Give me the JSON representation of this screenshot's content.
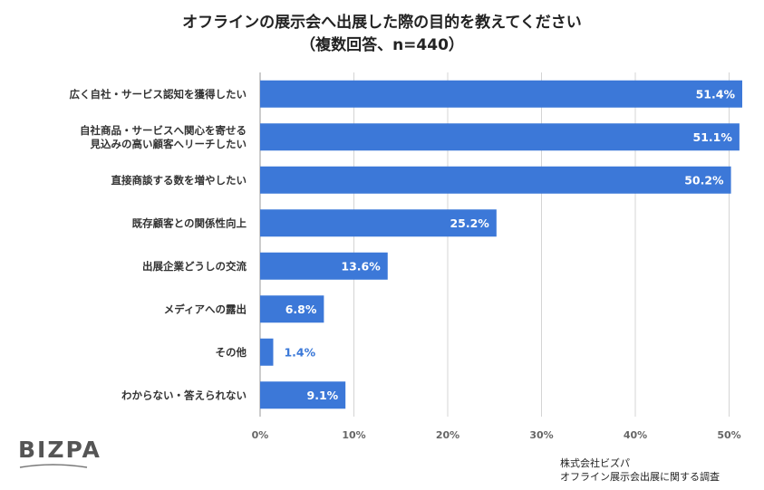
{
  "chart_data": {
    "type": "bar",
    "orientation": "horizontal",
    "title": "オフラインの展示会へ出展した際の目的を教えてください",
    "subtitle": "（複数回答、n=440）",
    "categories": [
      [
        "広く自社・サービス認知を獲得したい"
      ],
      [
        "自社商品・サービスへ関心を寄せる",
        "見込みの高い顧客へリーチしたい"
      ],
      [
        "直接商談する数を増やしたい"
      ],
      [
        "既存顧客との関係性向上"
      ],
      [
        "出展企業どうしの交流"
      ],
      [
        "メディアへの露出"
      ],
      [
        "その他"
      ],
      [
        "わからない・答えられない"
      ]
    ],
    "values": [
      51.4,
      51.1,
      50.2,
      25.2,
      13.6,
      6.8,
      1.4,
      9.1
    ],
    "value_labels": [
      "51.4%",
      "51.1%",
      "50.2%",
      "25.2%",
      "13.6%",
      "6.8%",
      "1.4%",
      "9.1%"
    ],
    "xlim": [
      0,
      52
    ],
    "x_ticks": [
      0,
      10,
      20,
      30,
      40,
      50
    ],
    "x_tick_labels": [
      "0%",
      "10%",
      "20%",
      "30%",
      "40%",
      "50%"
    ],
    "bar_color": "#3c78d8",
    "grid": true,
    "legend": "none"
  },
  "brand": {
    "logo_text": "BIZPA",
    "logo_color": "#555555"
  },
  "source": {
    "line1": "株式会社ビズパ",
    "line2": "オフライン展示会出展に関する調査"
  }
}
